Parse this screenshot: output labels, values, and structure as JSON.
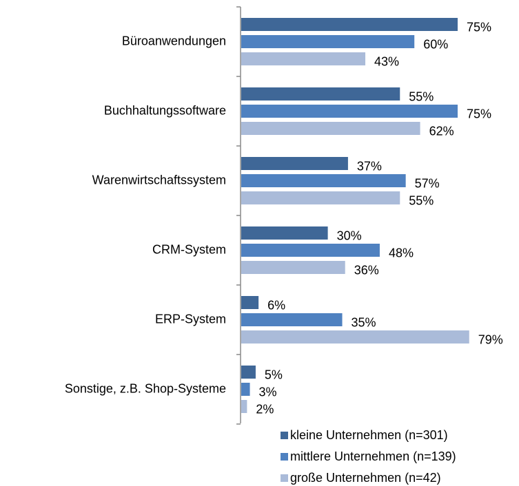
{
  "chart_data": {
    "type": "bar",
    "orientation": "horizontal",
    "categories": [
      "Büroanwendungen",
      "Buchhaltungssoftware",
      "Warenwirtschaftssystem",
      "CRM-System",
      "ERP-System",
      "Sonstige, z.B. Shop-Systeme"
    ],
    "series": [
      {
        "name": "kleine Unternehmen (n=301)",
        "color": "#3f6797",
        "values": [
          75,
          55,
          37,
          30,
          6,
          5
        ],
        "value_labels": [
          "75%",
          "55%",
          "37%",
          "30%",
          "6%",
          "5%"
        ]
      },
      {
        "name": "mittlere Unternehmen (n=139)",
        "color": "#4f81c0",
        "values": [
          60,
          75,
          57,
          48,
          35,
          3
        ],
        "value_labels": [
          "60%",
          "75%",
          "57%",
          "48%",
          "35%",
          "3%"
        ]
      },
      {
        "name": "große Unternehmen (n=42)",
        "color": "#aabbd9",
        "values": [
          43,
          62,
          55,
          36,
          79,
          2
        ],
        "value_labels": [
          "43%",
          "62%",
          "55%",
          "36%",
          "79%",
          "2%"
        ]
      }
    ],
    "legend": "bottom-right"
  }
}
